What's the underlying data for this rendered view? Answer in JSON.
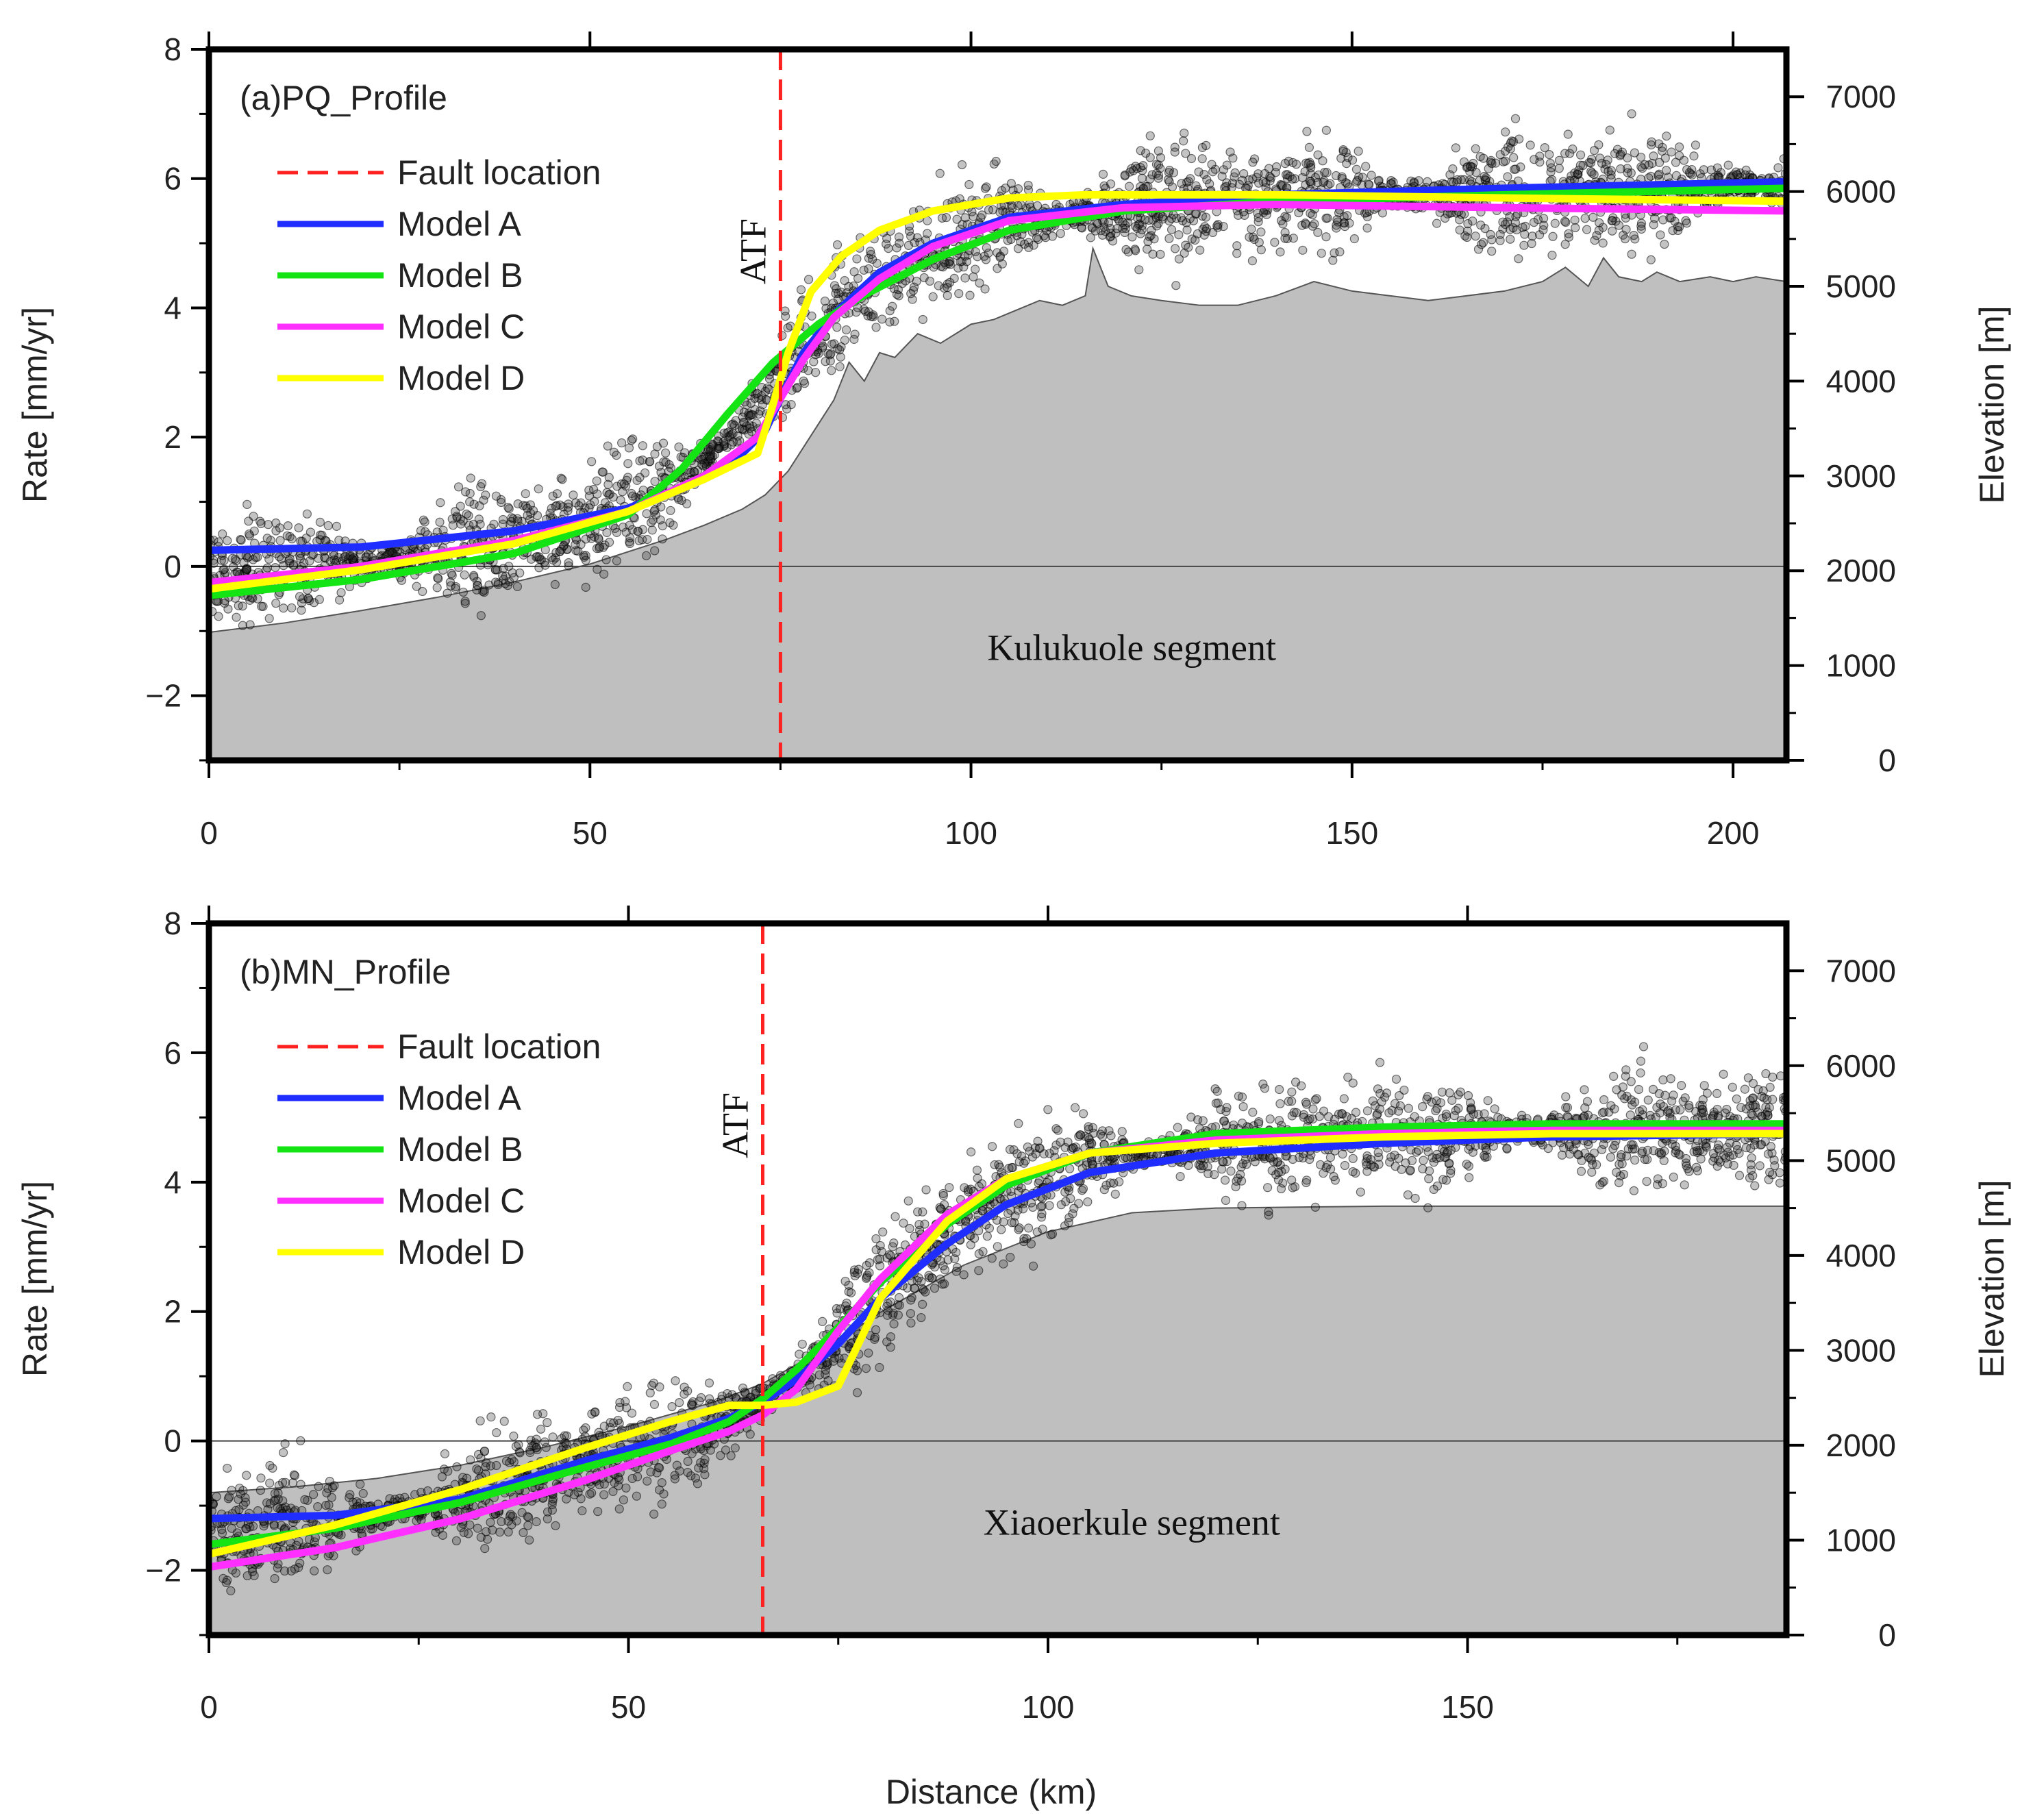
{
  "figure": {
    "xlabel": "Distance (km)"
  },
  "chart_data": [
    {
      "type": "line",
      "panel_label": "(a)PQ_Profile",
      "segment_label": "Kulukuole segment",
      "fault_label": "ATF",
      "fault_location_km": 75,
      "xlabel": "Distance (km)",
      "ylabel_left": "Rate [mm/yr]",
      "ylabel_right": "Elevation [m]",
      "xlim": [
        0,
        207
      ],
      "ylim_left": [
        -3,
        8
      ],
      "ylim_right": [
        0,
        7500
      ],
      "x_ticks": [
        "0",
        "50",
        "100",
        "150",
        "200"
      ],
      "y_ticks_left": [
        "−2",
        "0",
        "2",
        "4",
        "6",
        "8"
      ],
      "y_ticks_right": [
        "0",
        "1000",
        "2000",
        "3000",
        "4000",
        "5000",
        "6000",
        "7000"
      ],
      "legend": [
        "Fault location",
        "Model A",
        "Model B",
        "Model C",
        "Model D"
      ],
      "colors": {
        "fault": "#ff2020",
        "A": "#1f2dff",
        "B": "#14e414",
        "C": "#ff30ff",
        "D": "#ffff00",
        "terrain": "#bfbfbf"
      },
      "elevation_profile": {
        "x": [
          0,
          10,
          20,
          30,
          40,
          50,
          60,
          65,
          70,
          73,
          76,
          78,
          80,
          82,
          84,
          86,
          88,
          90,
          93,
          96,
          100,
          103,
          106,
          109,
          112,
          115,
          116,
          118,
          121,
          125,
          130,
          135,
          140,
          145,
          150,
          155,
          160,
          165,
          170,
          175,
          178,
          181,
          183,
          185,
          188,
          190,
          193,
          197,
          200,
          203,
          207
        ],
        "y": [
          1350,
          1450,
          1580,
          1720,
          1880,
          2070,
          2330,
          2480,
          2650,
          2800,
          3050,
          3300,
          3550,
          3800,
          4200,
          4000,
          4300,
          4250,
          4500,
          4400,
          4600,
          4650,
          4750,
          4850,
          4800,
          4900,
          5400,
          5000,
          4900,
          4850,
          4800,
          4800,
          4900,
          5050,
          4950,
          4900,
          4850,
          4900,
          4950,
          5050,
          5200,
          5000,
          5300,
          5100,
          5050,
          5150,
          5050,
          5100,
          5050,
          5100,
          5050
        ]
      },
      "series": [
        {
          "name": "Model A",
          "x": [
            0,
            20,
            40,
            55,
            65,
            70,
            73,
            75,
            78,
            82,
            88,
            95,
            105,
            120,
            140,
            170,
            207
          ],
          "y": [
            0.25,
            0.3,
            0.55,
            0.9,
            1.35,
            1.75,
            2.1,
            2.6,
            3.3,
            3.9,
            4.55,
            5.0,
            5.4,
            5.6,
            5.75,
            5.85,
            5.95
          ]
        },
        {
          "name": "Model B",
          "x": [
            0,
            20,
            40,
            55,
            62,
            68,
            74,
            80,
            86,
            95,
            105,
            120,
            140,
            170,
            207
          ],
          "y": [
            -0.45,
            -0.2,
            0.2,
            0.8,
            1.5,
            2.35,
            3.15,
            3.75,
            4.2,
            4.75,
            5.2,
            5.5,
            5.65,
            5.75,
            5.85
          ]
        },
        {
          "name": "Model C",
          "x": [
            0,
            20,
            40,
            55,
            65,
            72,
            75,
            78,
            82,
            88,
            95,
            105,
            120,
            140,
            170,
            207
          ],
          "y": [
            -0.25,
            0.0,
            0.4,
            0.85,
            1.4,
            2.0,
            2.6,
            3.2,
            3.85,
            4.45,
            4.95,
            5.35,
            5.55,
            5.6,
            5.55,
            5.5
          ]
        },
        {
          "name": "Model D",
          "x": [
            0,
            20,
            40,
            55,
            65,
            72,
            73.5,
            76,
            79,
            83,
            88,
            95,
            105,
            115,
            140,
            170,
            207
          ],
          "y": [
            -0.35,
            -0.05,
            0.35,
            0.85,
            1.35,
            1.75,
            2.3,
            3.3,
            4.25,
            4.8,
            5.2,
            5.5,
            5.7,
            5.75,
            5.75,
            5.7,
            5.65
          ]
        }
      ]
    },
    {
      "type": "line",
      "panel_label": "(b)MN_Profile",
      "segment_label": "Xiaoerkule segment",
      "fault_label": "ATF",
      "fault_location_km": 66,
      "xlabel": "Distance (km)",
      "ylabel_left": "Rate [mm/yr]",
      "ylabel_right": "Elevation [m]",
      "xlim": [
        0,
        188
      ],
      "ylim_left": [
        -3,
        8
      ],
      "ylim_right": [
        0,
        7500
      ],
      "x_ticks": [
        "0",
        "50",
        "100",
        "150"
      ],
      "y_ticks_left": [
        "−2",
        "0",
        "2",
        "4",
        "6",
        "8"
      ],
      "y_ticks_right": [
        "0",
        "1000",
        "2000",
        "3000",
        "4000",
        "5000",
        "6000",
        "7000"
      ],
      "legend": [
        "Fault location",
        "Model A",
        "Model B",
        "Model C",
        "Model D"
      ],
      "colors": {
        "fault": "#ff2020",
        "A": "#1f2dff",
        "B": "#14e414",
        "C": "#ff30ff",
        "D": "#ffff00",
        "terrain": "#bfbfbf"
      },
      "elevation_profile": {
        "x": [
          0,
          10,
          20,
          30,
          40,
          50,
          60,
          66,
          70,
          75,
          80,
          90,
          100,
          110,
          120,
          140,
          160,
          188
        ],
        "y": [
          1500,
          1560,
          1650,
          1790,
          1980,
          2200,
          2450,
          2650,
          2850,
          3100,
          3400,
          3900,
          4250,
          4450,
          4500,
          4520,
          4520,
          4520
        ]
      },
      "series": [
        {
          "name": "Model A",
          "x": [
            0,
            15,
            30,
            45,
            55,
            62,
            66,
            70,
            75,
            80,
            88,
            95,
            105,
            120,
            140,
            160,
            188
          ],
          "y": [
            -1.2,
            -1.15,
            -0.9,
            -0.3,
            0.05,
            0.35,
            0.6,
            0.95,
            1.5,
            2.2,
            3.05,
            3.65,
            4.15,
            4.45,
            4.6,
            4.7,
            4.75
          ]
        },
        {
          "name": "Model B",
          "x": [
            0,
            15,
            30,
            45,
            55,
            62,
            66,
            70,
            75,
            80,
            88,
            95,
            105,
            120,
            140,
            160,
            188
          ],
          "y": [
            -1.6,
            -1.35,
            -0.95,
            -0.4,
            -0.05,
            0.3,
            0.65,
            1.1,
            1.75,
            2.45,
            3.35,
            3.95,
            4.45,
            4.75,
            4.85,
            4.9,
            4.9
          ]
        },
        {
          "name": "Model C",
          "x": [
            0,
            15,
            30,
            45,
            55,
            62,
            66,
            70,
            75,
            80,
            88,
            95,
            105,
            120,
            140,
            160,
            188
          ],
          "y": [
            -1.95,
            -1.65,
            -1.2,
            -0.6,
            -0.15,
            0.15,
            0.4,
            0.8,
            1.7,
            2.5,
            3.5,
            4.05,
            4.45,
            4.65,
            4.75,
            4.8,
            4.8
          ]
        },
        {
          "name": "Model D",
          "x": [
            0,
            15,
            30,
            45,
            55,
            62,
            66,
            70,
            75,
            80,
            88,
            95,
            105,
            120,
            140,
            160,
            188
          ],
          "y": [
            -1.75,
            -1.3,
            -0.75,
            -0.1,
            0.3,
            0.55,
            0.55,
            0.6,
            0.85,
            2.2,
            3.4,
            4.05,
            4.45,
            4.6,
            4.7,
            4.75,
            4.75
          ]
        }
      ]
    }
  ]
}
